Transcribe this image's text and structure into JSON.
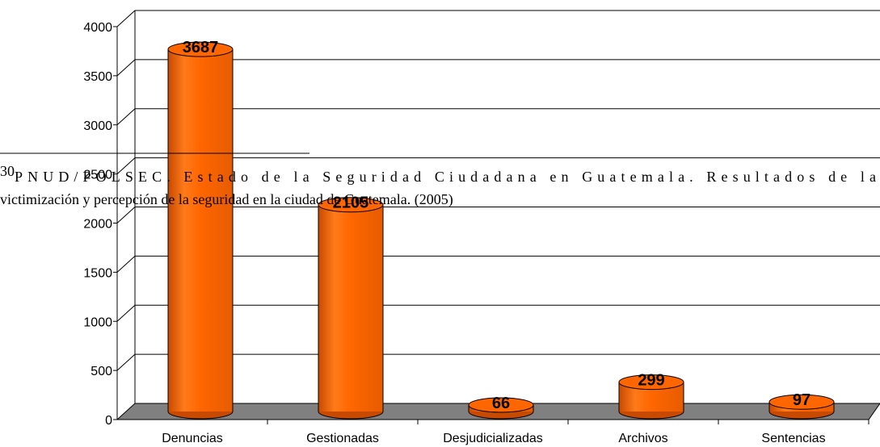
{
  "chart_data": {
    "type": "bar",
    "categories": [
      "Denuncias",
      "Gestionadas",
      "Desjudicializadas",
      "Archivos",
      "Sentencias"
    ],
    "values": [
      3687,
      2105,
      66,
      299,
      97
    ],
    "color": "#ff6600",
    "ylim": [
      0,
      4000
    ],
    "yticks": [
      0,
      500,
      1000,
      1500,
      2000,
      2500,
      3000,
      3500,
      4000
    ],
    "grid": true
  },
  "footnote": {
    "number": "30",
    "lines": [
      "PNUD/POLSEC. Estado de la Seguridad Ciudadana en Guatemala.  Resultados de la",
      "victimización y percepción de la seguridad en la ciudad de Guatemala. (2005)"
    ]
  }
}
